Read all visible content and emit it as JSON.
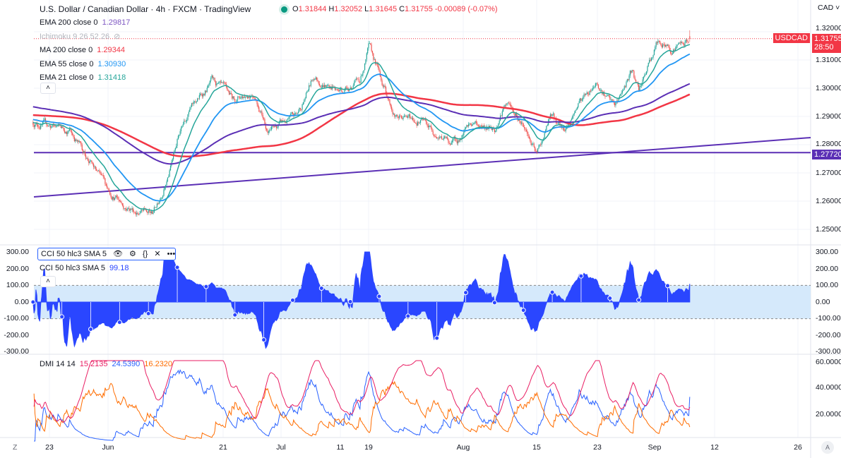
{
  "header": {
    "title": "U.S. Dollar / Canadian Dollar · 4h · FXCM · TradingView",
    "o": "1.31844",
    "h": "1.32052",
    "l": "1.31645",
    "c": "1.31755",
    "chg": "-0.00089 (-0.07%)",
    "o_label": "O",
    "h_label": "H",
    "l_label": "L",
    "c_label": "C"
  },
  "indicators": [
    {
      "label": "EMA 200 close 0",
      "value": "1.29817",
      "color": "#7e57c2"
    },
    {
      "label": "Ichimoku 9 26 52 26",
      "value": "",
      "color": "#b2b5be"
    },
    {
      "label": "MA 200 close 0",
      "value": "1.29344",
      "color": "#f23645"
    },
    {
      "label": "EMA 55 close 0",
      "value": "1.30930",
      "color": "#2196f3"
    },
    {
      "label": "EMA 21 close 0",
      "value": "1.31418",
      "color": "#26a69a"
    }
  ],
  "currency": "CAD",
  "symbol_tag": "USDCAD",
  "last_price": "1.31755",
  "countdown": "28:50",
  "hline_price": "1.27720",
  "price_axis": [
    "1.32000",
    "1.31000",
    "1.30000",
    "1.29000",
    "1.28000",
    "1.27000",
    "1.26000",
    "1.25000"
  ],
  "cci": {
    "label": "CCI 50 hlc3 SMA 5",
    "value": "99.18",
    "axis": [
      "300.00",
      "200.00",
      "100.00",
      "0.00",
      "-100.00",
      "-200.00",
      "-300.00"
    ]
  },
  "dmi": {
    "label": "DMI 14 14",
    "plus": "15.2135",
    "minus": "24.5390",
    "adx": "16.2320",
    "axis": [
      "60.0000",
      "40.0000",
      "20.0000"
    ]
  },
  "time_axis": [
    "23",
    "Jun",
    "21",
    "Jul",
    "11",
    "19",
    "Aug",
    "15",
    "23",
    "Sep",
    "12",
    "26"
  ],
  "auto_button": "A",
  "colors": {
    "up": "#26a69a",
    "down": "#ef5350",
    "ema200": "#5b2fb5",
    "ma200": "#f23645",
    "ema55": "#2196f3",
    "ema21": "#26a69a",
    "cci": "#2a46ff",
    "dmi_plus": "#e91e63",
    "dmi_minus": "#2962ff",
    "adx": "#ff6d00"
  },
  "chart_data": {
    "type": "candlestick",
    "timeframe": "4h",
    "ylim": [
      1.245,
      1.3235
    ],
    "price_path_days_from_jun1": [
      [
        -13,
        1.288
      ],
      [
        -6.5,
        1.285
      ],
      [
        -0.4,
        1.265
      ],
      [
        3.3,
        1.258
      ],
      [
        7.6,
        1.255
      ],
      [
        10.6,
        1.27
      ],
      [
        13.1,
        1.29
      ],
      [
        18,
        1.302
      ],
      [
        21.7,
        1.296
      ],
      [
        25.3,
        1.299
      ],
      [
        27.8,
        1.285
      ],
      [
        32.7,
        1.29
      ],
      [
        35.7,
        1.304
      ],
      [
        40,
        1.299
      ],
      [
        43.7,
        1.303
      ],
      [
        45.2,
        1.314
      ],
      [
        47.4,
        1.303
      ],
      [
        49.8,
        1.29
      ],
      [
        54.7,
        1.288
      ],
      [
        59.6,
        1.28
      ],
      [
        63.3,
        1.287
      ],
      [
        67,
        1.286
      ],
      [
        68.8,
        1.295
      ],
      [
        71.8,
        1.288
      ],
      [
        74.3,
        1.276
      ],
      [
        76.7,
        1.29
      ],
      [
        79.2,
        1.285
      ],
      [
        81.6,
        1.295
      ],
      [
        84.7,
        1.303
      ],
      [
        87.8,
        1.293
      ],
      [
        90.8,
        1.306
      ],
      [
        92,
        1.298
      ],
      [
        95.1,
        1.316
      ],
      [
        97.6,
        1.314
      ],
      [
        101,
        1.3175
      ]
    ],
    "horizontal_line": 1.2772,
    "trend_line": [
      [
        -13,
        1.2615
      ],
      [
        122,
        1.2825
      ]
    ]
  }
}
